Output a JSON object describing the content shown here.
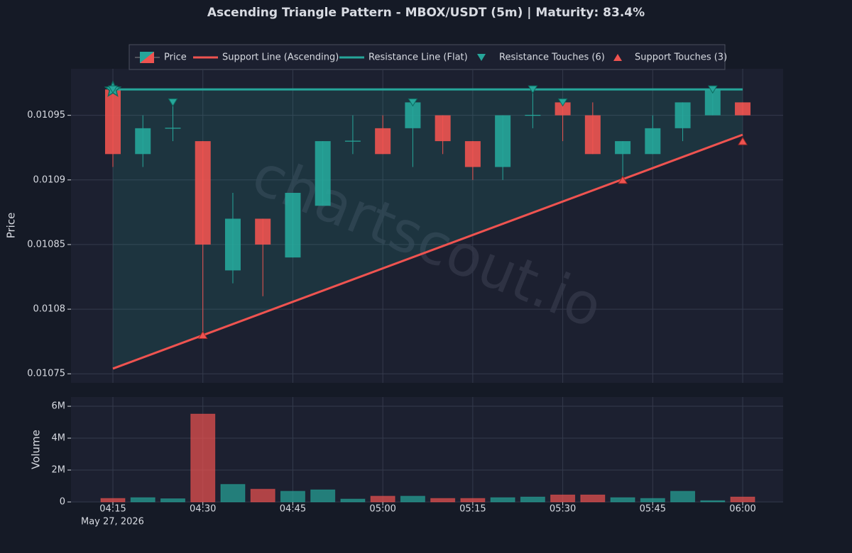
{
  "chart_data": {
    "type": "candlestick",
    "title": "Ascending Triangle Pattern - MBOX/USDT (5m) | Maturity: 83.4%",
    "ylabel": "Price",
    "watermark": "chartscout.io",
    "x_date_label": "May 27, 2026",
    "categories": [
      "04:15",
      null,
      null,
      "04:30",
      null,
      null,
      "04:45",
      null,
      null,
      "05:00",
      null,
      null,
      "05:15",
      null,
      null,
      "05:30",
      null,
      null,
      "05:45",
      null,
      null,
      "06:00"
    ],
    "ylim": [
      0.010743,
      0.010986
    ],
    "yticks": [
      0.01075,
      0.0108,
      0.01085,
      0.0109,
      0.01095
    ],
    "grid": true,
    "up_color": "#26a69a",
    "down_color": "#ef5350",
    "price": {
      "name": "Price",
      "open": [
        0.01097,
        0.01092,
        0.01094,
        0.01093,
        0.01083,
        0.01087,
        0.01084,
        0.01088,
        0.01093,
        0.01094,
        0.01094,
        0.01095,
        0.01093,
        0.01091,
        0.01095,
        0.01096,
        0.01095,
        0.01092,
        0.01092,
        0.01094,
        0.01095,
        0.01096
      ],
      "high": [
        0.01097,
        0.01095,
        0.01096,
        0.01093,
        0.01089,
        0.01087,
        0.01089,
        0.01093,
        0.01095,
        0.01095,
        0.01096,
        0.01095,
        0.01093,
        0.01095,
        0.01097,
        0.01096,
        0.01096,
        0.01093,
        0.01095,
        0.01096,
        0.01097,
        0.01096
      ],
      "low": [
        0.01091,
        0.01091,
        0.01093,
        0.01078,
        0.01082,
        0.01081,
        0.01084,
        0.01088,
        0.01092,
        0.01092,
        0.01091,
        0.01092,
        0.0109,
        0.0109,
        0.01094,
        0.01093,
        0.01092,
        0.0109,
        0.01092,
        0.01093,
        0.01095,
        0.01095
      ],
      "close": [
        0.01092,
        0.01094,
        0.01094,
        0.01085,
        0.01087,
        0.01085,
        0.01089,
        0.01093,
        0.01093,
        0.01092,
        0.01096,
        0.01093,
        0.01091,
        0.01095,
        0.01095,
        0.01095,
        0.01092,
        0.01093,
        0.01094,
        0.01096,
        0.01097,
        0.01095
      ]
    },
    "support": {
      "name": "Support Line (Ascending)",
      "color": "#ef5350",
      "x": [
        0,
        21
      ],
      "values": [
        0.010754,
        0.010935
      ]
    },
    "resistance": {
      "name": "Resistance Line (Flat)",
      "color": "#26a69a",
      "x": [
        0,
        21
      ],
      "values": [
        0.01097,
        0.01097
      ]
    },
    "resistance_touches": {
      "name": "Resistance Touches (6)",
      "color": "#26a69a",
      "x": [
        0,
        2,
        10,
        14,
        15,
        20
      ],
      "values": [
        0.01097,
        0.01096,
        0.01096,
        0.01097,
        0.01096,
        0.01097
      ]
    },
    "support_touches": {
      "name": "Support Touches (3)",
      "color": "#ef5350",
      "x": [
        3,
        17,
        21
      ],
      "values": [
        0.01078,
        0.0109,
        0.01093
      ]
    },
    "start_marker": {
      "x": 0,
      "value": 0.01097,
      "color": "#26a69a"
    },
    "volume": {
      "label": "Volume",
      "values": [
        220000,
        270000,
        200000,
        5510000,
        1100000,
        800000,
        670000,
        760000,
        180000,
        360000,
        360000,
        220000,
        220000,
        270000,
        310000,
        440000,
        440000,
        270000,
        220000,
        670000,
        80000,
        310000
      ],
      "ylim": [
        0,
        6580000
      ],
      "yticks": [
        0,
        {
          "value": 2000000,
          "label": "2M"
        },
        {
          "value": 4000000,
          "label": "4M"
        },
        {
          "value": 6000000,
          "label": "6M"
        }
      ]
    }
  }
}
